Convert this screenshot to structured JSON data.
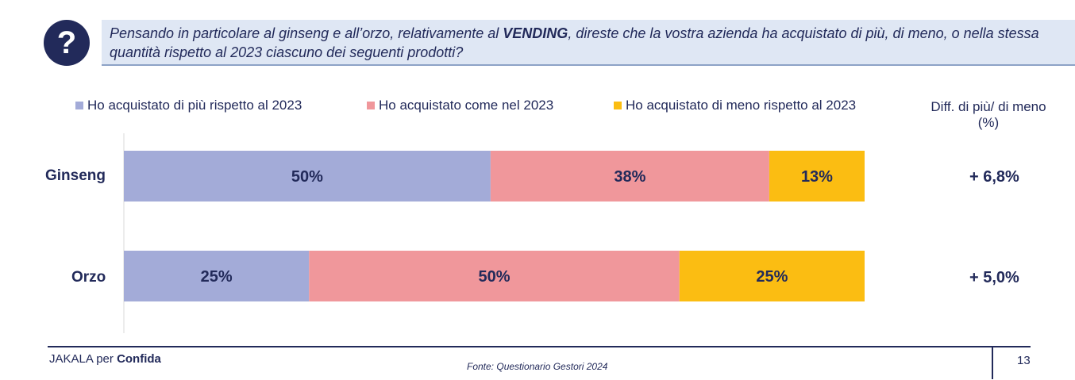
{
  "question": {
    "icon": "question-mark-icon",
    "text_before": "Pensando in particolare al ginseng e all’orzo, relativamente al ",
    "text_bold": "VENDING",
    "text_after": ", direste che la vostra azienda ha acquistato di più, di meno, o nella stessa quantità rispetto al 2023 ciascuno dei seguenti prodotti?"
  },
  "legend": [
    {
      "label": "Ho acquistato di più rispetto al 2023",
      "color": "#a3abd8"
    },
    {
      "label": "Ho acquistato come nel 2023",
      "color": "#f0979b"
    },
    {
      "label": "Ho acquistato di meno rispetto al 2023",
      "color": "#fbbd12"
    }
  ],
  "diff_header": {
    "line1": "Diff. di più/ di meno",
    "line2": "(%)"
  },
  "chart_data": {
    "type": "bar",
    "orientation": "horizontal",
    "stacked": true,
    "categories": [
      "Ginseng",
      "Orzo"
    ],
    "series": [
      {
        "name": "Ho acquistato di più rispetto al 2023",
        "values": [
          50,
          25
        ],
        "labels": [
          "50%",
          "25%"
        ],
        "color": "#a3abd8"
      },
      {
        "name": "Ho acquistato come nel 2023",
        "values": [
          38,
          50
        ],
        "labels": [
          "38%",
          "50%"
        ],
        "color": "#f0979b"
      },
      {
        "name": "Ho acquistato di meno rispetto al 2023",
        "values": [
          13,
          25
        ],
        "labels": [
          "13%",
          "25%"
        ],
        "color": "#fbbd12"
      }
    ],
    "xlim": [
      0,
      100
    ],
    "legend_position": "top",
    "diff": [
      "+ 6,8%",
      "+ 5,0%"
    ]
  },
  "footer": {
    "brand_prefix": "JAKALA per ",
    "brand_bold": "Confida",
    "source": "Fonte: Questionario Gestori 2024",
    "page": "13"
  }
}
